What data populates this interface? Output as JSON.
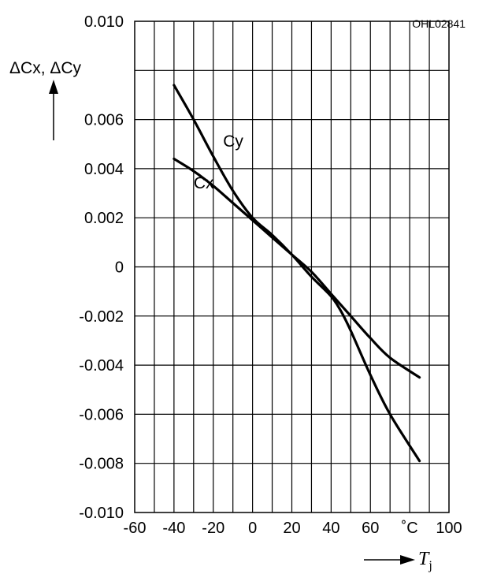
{
  "chart_data": {
    "type": "line",
    "figure_code": "OHL02841",
    "ylabel": "ΔCx, ΔCy",
    "xlabel": "T",
    "xlabel_subscript": "j",
    "xlim": [
      -60,
      100
    ],
    "ylim": [
      -0.01,
      0.01
    ],
    "x_ticks": [
      {
        "value": -60,
        "label": "-60"
      },
      {
        "value": -40,
        "label": "-40"
      },
      {
        "value": -20,
        "label": "-20"
      },
      {
        "value": 0,
        "label": "0"
      },
      {
        "value": 20,
        "label": "20"
      },
      {
        "value": 40,
        "label": "40"
      },
      {
        "value": 60,
        "label": "60"
      },
      {
        "value": 80,
        "label": "˚C"
      },
      {
        "value": 100,
        "label": "100"
      }
    ],
    "y_ticks": [
      {
        "value": 0.01,
        "label": "0.010"
      },
      {
        "value": 0.006,
        "label": "0.006"
      },
      {
        "value": 0.004,
        "label": "0.004"
      },
      {
        "value": 0.002,
        "label": "0.002"
      },
      {
        "value": 0,
        "label": "0"
      },
      {
        "value": -0.002,
        "label": "-0.002"
      },
      {
        "value": -0.004,
        "label": "-0.004"
      },
      {
        "value": -0.006,
        "label": "-0.006"
      },
      {
        "value": -0.008,
        "label": "-0.008"
      },
      {
        "value": -0.01,
        "label": "-0.010"
      }
    ],
    "x_grid_step": 10,
    "y_grid_step": 0.002,
    "grid": true,
    "series": [
      {
        "name": "Cx",
        "label_pos": [
          -30,
          0.0032
        ],
        "points": [
          [
            -40,
            0.0044
          ],
          [
            -30,
            0.0039
          ],
          [
            -20,
            0.0033
          ],
          [
            -10,
            0.0026
          ],
          [
            0,
            0.0019
          ],
          [
            10,
            0.0012
          ],
          [
            20,
            0.0005
          ],
          [
            30,
            -0.0002
          ],
          [
            40,
            -0.0011
          ],
          [
            50,
            -0.002
          ],
          [
            60,
            -0.0029
          ],
          [
            70,
            -0.0037
          ],
          [
            85,
            -0.0045
          ]
        ]
      },
      {
        "name": "Cy",
        "label_pos": [
          -15,
          0.0049
        ],
        "points": [
          [
            -40,
            0.0074
          ],
          [
            -30,
            0.006
          ],
          [
            -20,
            0.0045
          ],
          [
            -10,
            0.0031
          ],
          [
            0,
            0.002
          ],
          [
            10,
            0.0013
          ],
          [
            20,
            0.0005
          ],
          [
            30,
            -0.0004
          ],
          [
            40,
            -0.0012
          ],
          [
            45,
            -0.0018
          ],
          [
            50,
            -0.0026
          ],
          [
            60,
            -0.0044
          ],
          [
            70,
            -0.006
          ],
          [
            85,
            -0.0079
          ]
        ]
      }
    ]
  }
}
